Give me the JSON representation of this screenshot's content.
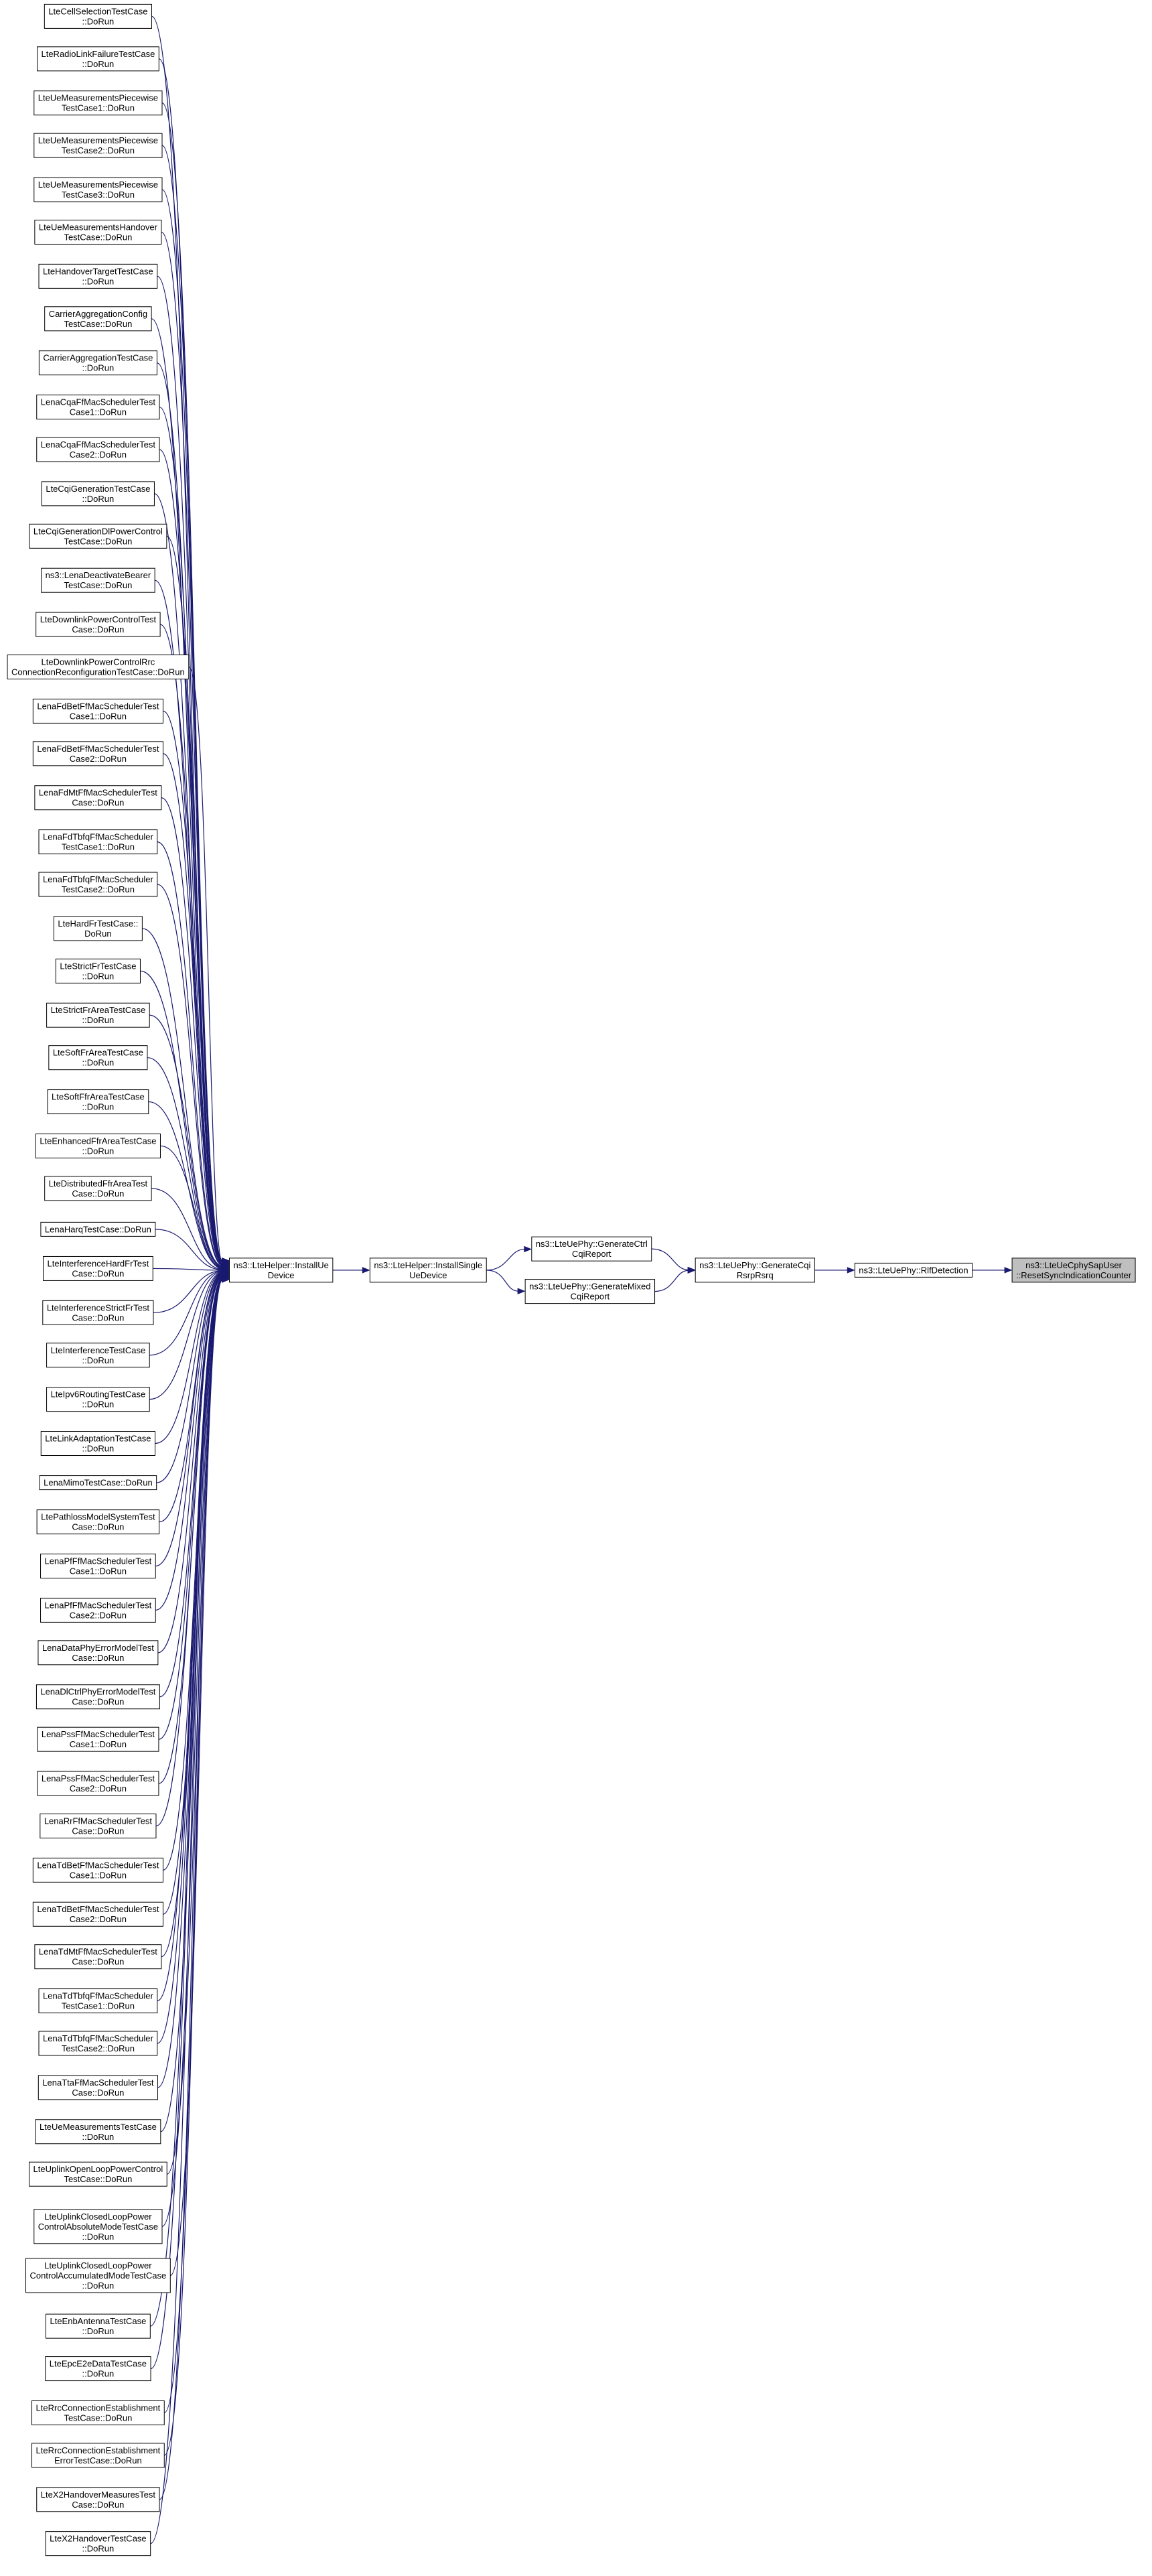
{
  "nodes": [
    {
      "label": [
        "LteCellSelectionTestCase",
        "::DoRun"
      ]
    },
    {
      "label": [
        "LteRadioLinkFailureTestCase",
        "::DoRun"
      ]
    },
    {
      "label": [
        "LteUeMeasurementsPiecewise",
        "TestCase1::DoRun"
      ]
    },
    {
      "label": [
        "LteUeMeasurementsPiecewise",
        "TestCase2::DoRun"
      ]
    },
    {
      "label": [
        "LteUeMeasurementsPiecewise",
        "TestCase3::DoRun"
      ]
    },
    {
      "label": [
        "LteUeMeasurementsHandover",
        "TestCase::DoRun"
      ]
    },
    {
      "label": [
        "LteHandoverTargetTestCase",
        "::DoRun"
      ]
    },
    {
      "label": [
        "CarrierAggregationConfig",
        "TestCase::DoRun"
      ]
    },
    {
      "label": [
        "CarrierAggregationTestCase",
        "::DoRun"
      ]
    },
    {
      "label": [
        "LenaCqaFfMacSchedulerTest",
        "Case1::DoRun"
      ]
    },
    {
      "label": [
        "LenaCqaFfMacSchedulerTest",
        "Case2::DoRun"
      ]
    },
    {
      "label": [
        "LteCqiGenerationTestCase",
        "::DoRun"
      ]
    },
    {
      "label": [
        "LteCqiGenerationDlPowerControl",
        "TestCase::DoRun"
      ]
    },
    {
      "label": [
        "ns3::LenaDeactivateBearer",
        "TestCase::DoRun"
      ]
    },
    {
      "label": [
        "LteDownlinkPowerControlTest",
        "Case::DoRun"
      ]
    },
    {
      "label": [
        "LteDownlinkPowerControlRrc",
        "ConnectionReconfigurationTestCase::DoRun"
      ]
    },
    {
      "label": [
        "LenaFdBetFfMacSchedulerTest",
        "Case1::DoRun"
      ]
    },
    {
      "label": [
        "LenaFdBetFfMacSchedulerTest",
        "Case2::DoRun"
      ]
    },
    {
      "label": [
        "LenaFdMtFfMacSchedulerTest",
        "Case::DoRun"
      ]
    },
    {
      "label": [
        "LenaFdTbfqFfMacScheduler",
        "TestCase1::DoRun"
      ]
    },
    {
      "label": [
        "LenaFdTbfqFfMacScheduler",
        "TestCase2::DoRun"
      ]
    },
    {
      "label": [
        "LteHardFrTestCase::",
        "DoRun"
      ]
    },
    {
      "label": [
        "LteStrictFrTestCase",
        "::DoRun"
      ]
    },
    {
      "label": [
        "LteStrictFrAreaTestCase",
        "::DoRun"
      ]
    },
    {
      "label": [
        "LteSoftFrAreaTestCase",
        "::DoRun"
      ]
    },
    {
      "label": [
        "LteSoftFfrAreaTestCase",
        "::DoRun"
      ]
    },
    {
      "label": [
        "LteEnhancedFfrAreaTestCase",
        "::DoRun"
      ]
    },
    {
      "label": [
        "LteDistributedFfrAreaTest",
        "Case::DoRun"
      ]
    },
    {
      "label": [
        "LenaHarqTestCase::DoRun"
      ]
    },
    {
      "label": [
        "LteInterferenceHardFrTest",
        "Case::DoRun"
      ]
    },
    {
      "label": [
        "LteInterferenceStrictFrTest",
        "Case::DoRun"
      ]
    },
    {
      "label": [
        "LteInterferenceTestCase",
        "::DoRun"
      ]
    },
    {
      "label": [
        "LteIpv6RoutingTestCase",
        "::DoRun"
      ]
    },
    {
      "label": [
        "LteLinkAdaptationTestCase",
        "::DoRun"
      ]
    },
    {
      "label": [
        "LenaMimoTestCase::DoRun"
      ]
    },
    {
      "label": [
        "LtePathlossModelSystemTest",
        "Case::DoRun"
      ]
    },
    {
      "label": [
        "LenaPfFfMacSchedulerTest",
        "Case1::DoRun"
      ]
    },
    {
      "label": [
        "LenaPfFfMacSchedulerTest",
        "Case2::DoRun"
      ]
    },
    {
      "label": [
        "LenaDataPhyErrorModelTest",
        "Case::DoRun"
      ]
    },
    {
      "label": [
        "LenaDlCtrlPhyErrorModelTest",
        "Case::DoRun"
      ]
    },
    {
      "label": [
        "LenaPssFfMacSchedulerTest",
        "Case1::DoRun"
      ]
    },
    {
      "label": [
        "LenaPssFfMacSchedulerTest",
        "Case2::DoRun"
      ]
    },
    {
      "label": [
        "LenaRrFfMacSchedulerTest",
        "Case::DoRun"
      ]
    },
    {
      "label": [
        "LenaTdBetFfMacSchedulerTest",
        "Case1::DoRun"
      ]
    },
    {
      "label": [
        "LenaTdBetFfMacSchedulerTest",
        "Case2::DoRun"
      ]
    },
    {
      "label": [
        "LenaTdMtFfMacSchedulerTest",
        "Case::DoRun"
      ]
    },
    {
      "label": [
        "LenaTdTbfqFfMacScheduler",
        "TestCase1::DoRun"
      ]
    },
    {
      "label": [
        "LenaTdTbfqFfMacScheduler",
        "TestCase2::DoRun"
      ]
    },
    {
      "label": [
        "LenaTtaFfMacSchedulerTest",
        "Case::DoRun"
      ]
    },
    {
      "label": [
        "LteUeMeasurementsTestCase",
        "::DoRun"
      ]
    },
    {
      "label": [
        "LteUplinkOpenLoopPowerControl",
        "TestCase::DoRun"
      ]
    },
    {
      "label": [
        "LteUplinkClosedLoopPower",
        "ControlAbsoluteModeTestCase",
        "::DoRun"
      ]
    },
    {
      "label": [
        "LteUplinkClosedLoopPower",
        "ControlAccumulatedModeTestCase",
        "::DoRun"
      ]
    },
    {
      "label": [
        "LteEnbAntennaTestCase",
        "::DoRun"
      ]
    },
    {
      "label": [
        "LteEpcE2eDataTestCase",
        "::DoRun"
      ]
    },
    {
      "label": [
        "LteRrcConnectionEstablishment",
        "TestCase::DoRun"
      ]
    },
    {
      "label": [
        "LteRrcConnectionEstablishment",
        "ErrorTestCase::DoRun"
      ]
    },
    {
      "label": [
        "LteX2HandoverMeasuresTest",
        "Case::DoRun"
      ]
    },
    {
      "label": [
        "LteX2HandoverTestCase",
        "::DoRun"
      ]
    },
    {
      "label": [
        "ns3::LteHelper::InstallUe",
        "Device"
      ]
    },
    {
      "label": [
        "ns3::LteHelper::InstallSingle",
        "UeDevice"
      ]
    },
    {
      "label": [
        "ns3::LteUePhy::GenerateCtrl",
        "CqiReport"
      ]
    },
    {
      "label": [
        "ns3::LteUePhy::GenerateMixed",
        "CqiReport"
      ]
    },
    {
      "label": [
        "ns3::LteUePhy::GenerateCqi",
        "RsrpRsrq"
      ]
    },
    {
      "label": [
        "ns3::LteUePhy::RlfDetection"
      ]
    },
    {
      "label": [
        "ns3::LteUeCphySapUser",
        "::ResetSyncIndicationCounter"
      ]
    }
  ]
}
